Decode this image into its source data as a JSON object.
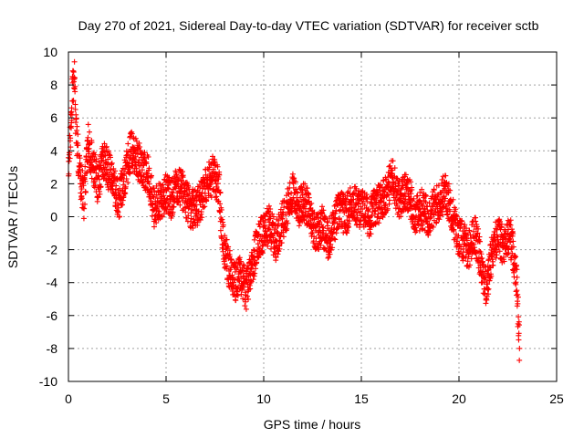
{
  "chart_data": {
    "type": "scatter",
    "title": "Day 270 of 2021, Sidereal Day-to-day VTEC variation (SDTVAR) for receiver sctb",
    "xlabel": "GPS time / hours",
    "ylabel": "SDTVAR / TECUs",
    "xlim": [
      0,
      25
    ],
    "ylim": [
      -10,
      10
    ],
    "x_ticks": [
      "0",
      "5",
      "10",
      "15",
      "20",
      "25"
    ],
    "y_ticks": [
      "-10",
      "-8",
      "-6",
      "-4",
      "-2",
      "0",
      "2",
      "4",
      "6",
      "8",
      "10"
    ],
    "grid": true,
    "marker": "+",
    "series_color": "#ff0000",
    "series": [
      {
        "name": "SDTVAR",
        "trend": [
          [
            0.0,
            3.0
          ],
          [
            0.1,
            5.0
          ],
          [
            0.2,
            7.5
          ],
          [
            0.3,
            8.5
          ],
          [
            0.4,
            5.0
          ],
          [
            0.6,
            2.5
          ],
          [
            0.8,
            1.0
          ],
          [
            1.0,
            4.5
          ],
          [
            1.2,
            3.5
          ],
          [
            1.5,
            2.0
          ],
          [
            1.8,
            3.5
          ],
          [
            2.0,
            3.0
          ],
          [
            2.3,
            2.0
          ],
          [
            2.6,
            1.0
          ],
          [
            2.9,
            2.5
          ],
          [
            3.2,
            4.0
          ],
          [
            3.5,
            3.5
          ],
          [
            3.8,
            3.0
          ],
          [
            4.1,
            2.5
          ],
          [
            4.4,
            0.5
          ],
          [
            4.7,
            1.0
          ],
          [
            5.0,
            1.5
          ],
          [
            5.3,
            1.0
          ],
          [
            5.6,
            2.0
          ],
          [
            5.9,
            1.5
          ],
          [
            6.2,
            0.5
          ],
          [
            6.5,
            0.5
          ],
          [
            6.8,
            1.0
          ],
          [
            7.1,
            2.0
          ],
          [
            7.4,
            2.5
          ],
          [
            7.7,
            2.0
          ],
          [
            7.9,
            -1.5
          ],
          [
            8.2,
            -3.0
          ],
          [
            8.5,
            -4.0
          ],
          [
            8.8,
            -3.5
          ],
          [
            9.1,
            -4.5
          ],
          [
            9.4,
            -3.0
          ],
          [
            9.7,
            -1.5
          ],
          [
            10.0,
            -1.0
          ],
          [
            10.3,
            -0.5
          ],
          [
            10.6,
            -1.5
          ],
          [
            10.9,
            -0.5
          ],
          [
            11.2,
            0.5
          ],
          [
            11.5,
            1.5
          ],
          [
            11.8,
            0.5
          ],
          [
            12.1,
            1.0
          ],
          [
            12.4,
            0.0
          ],
          [
            12.7,
            -1.0
          ],
          [
            13.0,
            -0.5
          ],
          [
            13.3,
            -1.5
          ],
          [
            13.6,
            -0.5
          ],
          [
            13.9,
            0.5
          ],
          [
            14.2,
            0.0
          ],
          [
            14.5,
            1.0
          ],
          [
            14.8,
            0.5
          ],
          [
            15.1,
            0.5
          ],
          [
            15.4,
            0.0
          ],
          [
            15.7,
            0.5
          ],
          [
            16.0,
            1.0
          ],
          [
            16.3,
            1.5
          ],
          [
            16.6,
            2.5
          ],
          [
            16.9,
            1.0
          ],
          [
            17.2,
            1.5
          ],
          [
            17.5,
            1.0
          ],
          [
            17.8,
            0.0
          ],
          [
            18.1,
            0.5
          ],
          [
            18.4,
            0.0
          ],
          [
            18.7,
            0.5
          ],
          [
            19.0,
            1.0
          ],
          [
            19.3,
            1.5
          ],
          [
            19.6,
            0.5
          ],
          [
            19.9,
            -1.0
          ],
          [
            20.2,
            -1.5
          ],
          [
            20.5,
            -2.0
          ],
          [
            20.8,
            -1.0
          ],
          [
            21.1,
            -2.5
          ],
          [
            21.4,
            -4.5
          ],
          [
            21.7,
            -2.0
          ],
          [
            22.0,
            -1.0
          ],
          [
            22.3,
            -2.0
          ],
          [
            22.6,
            -1.0
          ],
          [
            22.9,
            -3.0
          ],
          [
            23.0,
            -5.0
          ],
          [
            23.1,
            -8.0
          ]
        ],
        "spread": 1.2,
        "density_per_hour": 120
      }
    ]
  }
}
